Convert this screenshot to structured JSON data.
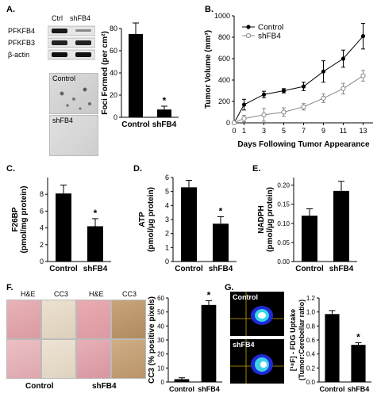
{
  "panel_labels": [
    "A.",
    "B.",
    "C.",
    "D.",
    "E.",
    "F.",
    "G."
  ],
  "panel_a": {
    "blot": {
      "lanes": [
        "Ctrl",
        "shFB4"
      ],
      "proteins": [
        "PFKFB4",
        "PFKFB3",
        "β-actin"
      ]
    },
    "images": [
      "Control",
      "shFB4"
    ]
  },
  "panel_f": {
    "stains": [
      "H&E",
      "CC3",
      "H&E",
      "CC3"
    ],
    "groups": [
      "Control",
      "shFB4"
    ]
  },
  "panel_g": {
    "images": [
      "Control",
      "shFB4"
    ]
  },
  "chart_data": [
    {
      "id": "foci",
      "type": "bar",
      "categories": [
        "Control",
        "shFB4"
      ],
      "values": [
        75,
        7
      ],
      "errors": [
        10,
        3
      ],
      "ylabel": "Foci Formed (per cm²)",
      "ylim": [
        0,
        80
      ],
      "yticks": [
        "0",
        "20",
        "40",
        "60",
        "80"
      ],
      "annotations": [
        "",
        "*"
      ]
    },
    {
      "id": "tumor-volume",
      "type": "line",
      "x": [
        0,
        1,
        3,
        5,
        7,
        9,
        11,
        13
      ],
      "series": [
        {
          "name": "Control",
          "values": [
            0,
            170,
            265,
            300,
            340,
            480,
            600,
            810
          ],
          "errors": [
            0,
            50,
            30,
            20,
            40,
            100,
            80,
            120
          ],
          "marker": "filled"
        },
        {
          "name": "shFB4",
          "values": [
            0,
            40,
            75,
            100,
            150,
            230,
            320,
            440
          ],
          "errors": [
            0,
            30,
            60,
            40,
            30,
            40,
            50,
            50
          ],
          "marker": "open"
        }
      ],
      "xlabel": "Days Following Tumor Appearance",
      "ylabel": "Tumor Volume (mm³)",
      "xlim": [
        0,
        14
      ],
      "ylim": [
        0,
        1000
      ],
      "xticks": [
        "0",
        "1",
        "3",
        "5",
        "7",
        "9",
        "11",
        "13"
      ],
      "yticks": [
        "0",
        "200",
        "400",
        "600",
        "800",
        "1000"
      ],
      "legend": "top-left"
    },
    {
      "id": "f26bp",
      "type": "bar",
      "categories": [
        "Control",
        "shFB4"
      ],
      "values": [
        8.1,
        4.2
      ],
      "errors": [
        1.0,
        0.9
      ],
      "ylabel": "F26BP (pmol/mg protein)",
      "ylim": [
        0,
        10
      ],
      "yticks": [
        "0",
        "2",
        "4",
        "6",
        "8"
      ],
      "annotations": [
        "",
        "*"
      ]
    },
    {
      "id": "atp",
      "type": "bar",
      "categories": [
        "Control",
        "shFB4"
      ],
      "values": [
        5.3,
        2.7
      ],
      "errors": [
        0.5,
        0.5
      ],
      "ylabel": "ATP (pmol/µg protein)",
      "ylim": [
        0,
        6
      ],
      "yticks": [
        "0",
        "1",
        "2",
        "3",
        "4",
        "5",
        "6"
      ],
      "annotations": [
        "",
        "*"
      ]
    },
    {
      "id": "nadph",
      "type": "bar",
      "categories": [
        "Control",
        "shFB4"
      ],
      "values": [
        0.12,
        0.185
      ],
      "errors": [
        0.018,
        0.025
      ],
      "ylabel": "NADPH (pmol/µg protein)",
      "ylim": [
        0,
        0.22
      ],
      "yticks": [
        "0.00",
        "0.05",
        "0.10",
        "0.15",
        "0.20"
      ],
      "annotations": [
        "",
        ""
      ]
    },
    {
      "id": "cc3",
      "type": "bar",
      "categories": [
        "Control",
        "shFB4"
      ],
      "values": [
        2,
        55
      ],
      "errors": [
        1,
        3
      ],
      "ylabel": "CC3 (% positive pixels)",
      "ylim": [
        0,
        60
      ],
      "yticks": [
        "0",
        "10",
        "20",
        "30",
        "40",
        "50",
        "60"
      ],
      "annotations": [
        "",
        "*"
      ]
    },
    {
      "id": "fdg",
      "type": "bar",
      "categories": [
        "Control",
        "shFB4"
      ],
      "values": [
        0.97,
        0.53
      ],
      "errors": [
        0.05,
        0.03
      ],
      "ylabel": "[¹⁸F] - FDG Uptake (Tumor:Cerebellar ratio)",
      "ylim": [
        0,
        1.2
      ],
      "yticks": [
        "0.0",
        "0.2",
        "0.4",
        "0.6",
        "0.8",
        "1.0",
        "1.2"
      ],
      "annotations": [
        "",
        "*"
      ]
    }
  ]
}
